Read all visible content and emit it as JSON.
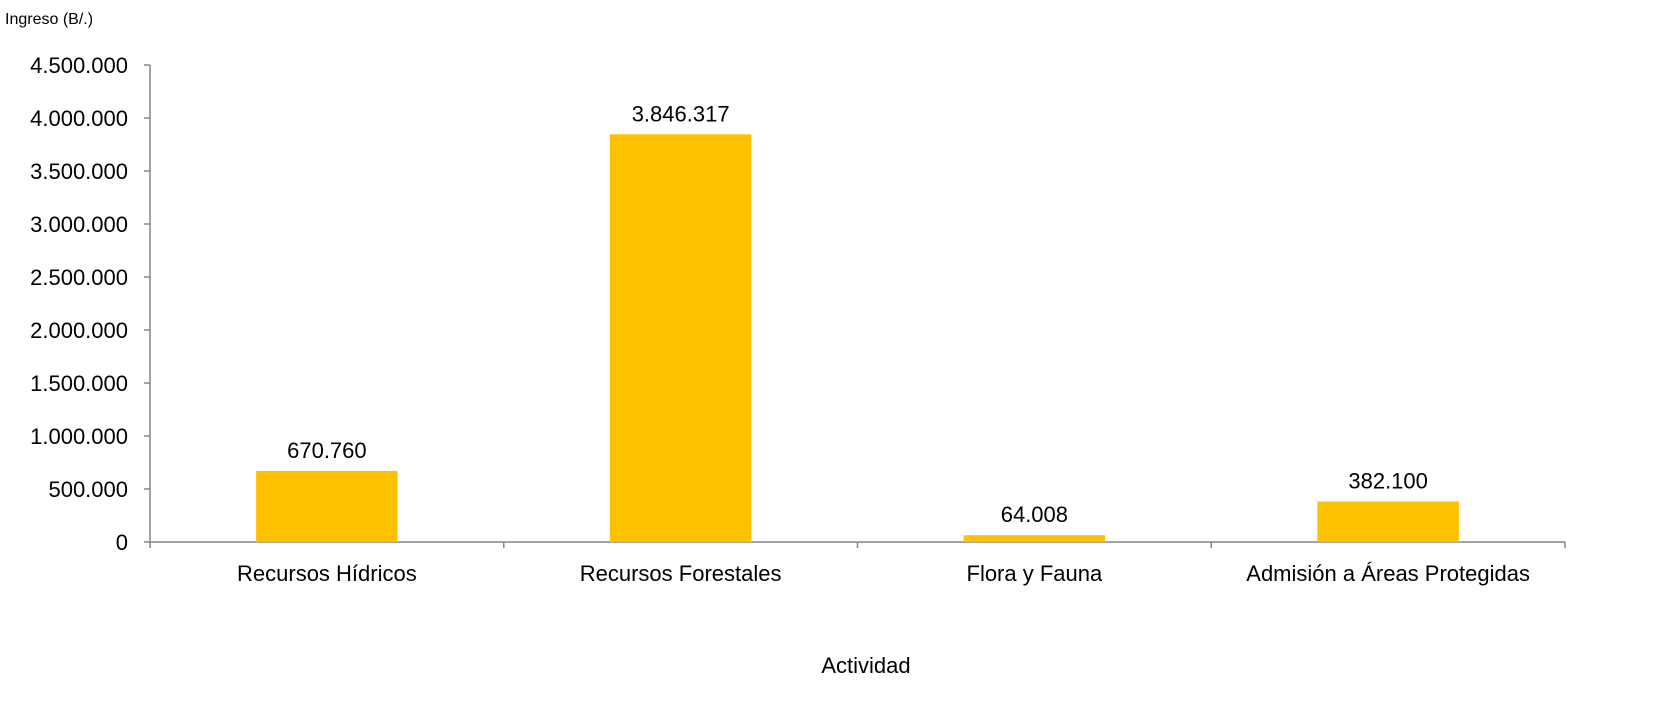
{
  "chart_data": {
    "type": "bar",
    "title": "",
    "ylabel": "Ingreso (B/.)",
    "xlabel": "Actividad",
    "categories": [
      "Recursos Hídricos",
      "Recursos Forestales",
      "Flora y Fauna",
      "Admisión a Áreas Protegidas"
    ],
    "values": [
      670760,
      3846317,
      64008,
      382100
    ],
    "value_labels": [
      "670.760",
      "3.846.317",
      "64.008",
      "382.100"
    ],
    "ylim": [
      0,
      4500000
    ],
    "yticks": [
      0,
      500000,
      1000000,
      1500000,
      2000000,
      2500000,
      3000000,
      3500000,
      4000000,
      4500000
    ],
    "ytick_labels": [
      "0",
      "500.000",
      "1.000.000",
      "1.500.000",
      "2.000.000",
      "2.500.000",
      "3.000.000",
      "3.500.000",
      "4.000.000",
      "4.500.000"
    ],
    "grid": false,
    "legend": "none",
    "bar_color": "#FFC000",
    "axis_color": "#868686"
  }
}
